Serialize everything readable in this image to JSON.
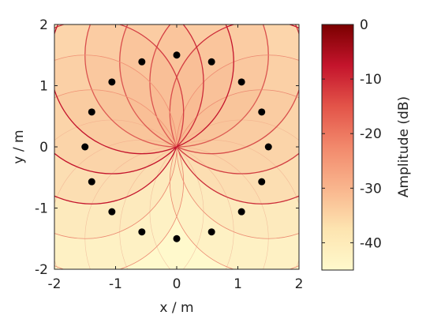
{
  "chart_data": [
    {
      "type": "heatmap",
      "xlabel": "x / m",
      "ylabel": "y / m",
      "xlim": [
        -2,
        2
      ],
      "ylim": [
        -2,
        2
      ],
      "xticks": [
        "-2",
        "-1",
        "0",
        "1",
        "2"
      ],
      "yticks": [
        "-2",
        "-1",
        "0",
        "1",
        "2"
      ],
      "grid": false,
      "focus_point": [
        0,
        0
      ],
      "sources": {
        "name": "loudspeakers",
        "color": "#000000",
        "radius": 1.5,
        "count": 16,
        "points": [
          {
            "x": 0.0,
            "y": 1.5
          },
          {
            "x": 0.57,
            "y": 1.39
          },
          {
            "x": 1.06,
            "y": 1.06
          },
          {
            "x": 1.39,
            "y": 0.57
          },
          {
            "x": 1.5,
            "y": 0.0
          },
          {
            "x": 1.39,
            "y": -0.57
          },
          {
            "x": 1.06,
            "y": -1.06
          },
          {
            "x": 0.57,
            "y": -1.39
          },
          {
            "x": 0.0,
            "y": -1.5
          },
          {
            "x": -0.57,
            "y": -1.39
          },
          {
            "x": -1.06,
            "y": -1.06
          },
          {
            "x": -1.39,
            "y": -0.57
          },
          {
            "x": -1.5,
            "y": 0.0
          },
          {
            "x": -1.39,
            "y": 0.57
          },
          {
            "x": -1.06,
            "y": 1.06
          },
          {
            "x": -0.57,
            "y": 1.39
          }
        ]
      },
      "active_source_indices": [
        0,
        1,
        2,
        3,
        4,
        5,
        11,
        12,
        13,
        14,
        15
      ]
    },
    {
      "type": "colorbar",
      "label": "Amplitude (dB)",
      "range": [
        -45,
        0
      ],
      "ticks": [
        "0",
        "-10",
        "-20",
        "-30",
        "-40"
      ],
      "tick_values": [
        0,
        -10,
        -20,
        -30,
        -40
      ],
      "colormap": [
        "#fff9cc",
        "#fde4b0",
        "#f9b58d",
        "#f2896c",
        "#e35449",
        "#c4142c",
        "#7a0000"
      ]
    }
  ]
}
